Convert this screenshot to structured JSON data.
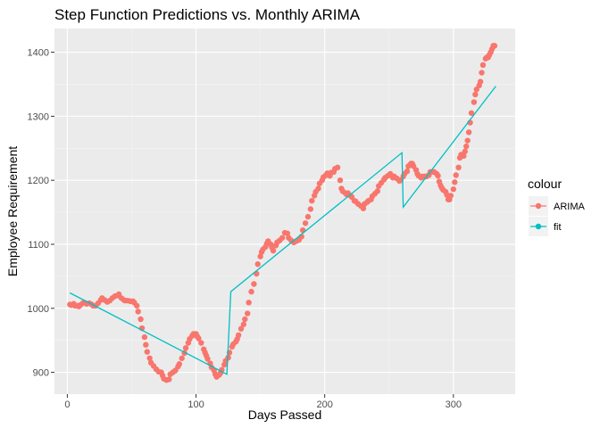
{
  "chart_data": {
    "type": "scatter",
    "title": "Step Function Predictions vs. Monthly ARIMA",
    "xlabel": "Days Passed",
    "ylabel": "Employee Requirement",
    "xlim": [
      -10,
      348
    ],
    "ylim": [
      866,
      1437
    ],
    "x_ticks": [
      0,
      100,
      200,
      300
    ],
    "y_ticks": [
      900,
      1000,
      1100,
      1200,
      1300,
      1400
    ],
    "grid": true,
    "legend": {
      "title": "colour",
      "placement": "right",
      "entries": [
        {
          "label": "ARIMA",
          "color": "#F8766D",
          "kind": "points"
        },
        {
          "label": "fit",
          "color": "#00BFC4",
          "kind": "line"
        }
      ]
    },
    "series": [
      {
        "name": "ARIMA",
        "color": "#F8766D",
        "kind": "points",
        "points": [
          [
            2,
            1006
          ],
          [
            3,
            1005
          ],
          [
            5,
            1007
          ],
          [
            6,
            1004
          ],
          [
            8,
            1004
          ],
          [
            9,
            1003
          ],
          [
            10,
            1005
          ],
          [
            12,
            1008
          ],
          [
            13,
            1009
          ],
          [
            15,
            1007
          ],
          [
            17,
            1008
          ],
          [
            19,
            1006
          ],
          [
            20,
            1004
          ],
          [
            22,
            1004
          ],
          [
            24,
            1008
          ],
          [
            26,
            1013
          ],
          [
            27,
            1016
          ],
          [
            29,
            1013
          ],
          [
            31,
            1010
          ],
          [
            33,
            1012
          ],
          [
            35,
            1016
          ],
          [
            37,
            1019
          ],
          [
            39,
            1020
          ],
          [
            40,
            1022
          ],
          [
            42,
            1016
          ],
          [
            44,
            1013
          ],
          [
            45,
            1012
          ],
          [
            47,
            1012
          ],
          [
            49,
            1011
          ],
          [
            51,
            1011
          ],
          [
            52,
            1009
          ],
          [
            54,
            1004
          ],
          [
            55,
            995
          ],
          [
            57,
            983
          ],
          [
            58,
            969
          ],
          [
            60,
            955
          ],
          [
            61,
            943
          ],
          [
            62,
            932
          ],
          [
            64,
            922
          ],
          [
            65,
            915
          ],
          [
            67,
            910
          ],
          [
            69,
            905
          ],
          [
            71,
            901
          ],
          [
            73,
            900
          ],
          [
            74,
            895
          ],
          [
            75,
            890
          ],
          [
            77,
            888
          ],
          [
            79,
            889
          ],
          [
            80,
            897
          ],
          [
            82,
            900
          ],
          [
            84,
            903
          ],
          [
            86,
            909
          ],
          [
            87,
            913
          ],
          [
            89,
            922
          ],
          [
            91,
            930
          ],
          [
            92,
            938
          ],
          [
            94,
            946
          ],
          [
            95,
            952
          ],
          [
            97,
            957
          ],
          [
            98,
            960
          ],
          [
            100,
            960
          ],
          [
            101,
            956
          ],
          [
            102,
            953
          ],
          [
            104,
            946
          ],
          [
            106,
            936
          ],
          [
            107,
            931
          ],
          [
            108,
            926
          ],
          [
            109,
            921
          ],
          [
            111,
            914
          ],
          [
            112,
            908
          ],
          [
            114,
            903
          ],
          [
            115,
            897
          ],
          [
            116,
            893
          ],
          [
            118,
            896
          ],
          [
            119,
            899
          ],
          [
            120,
            904
          ],
          [
            122,
            912
          ],
          [
            123,
            918
          ],
          [
            125,
            923
          ],
          [
            126,
            931
          ],
          [
            128,
            940
          ],
          [
            129,
            944
          ],
          [
            131,
            948
          ],
          [
            132,
            952
          ],
          [
            133,
            958
          ],
          [
            135,
            968
          ],
          [
            137,
            975
          ],
          [
            138,
            983
          ],
          [
            140,
            992
          ],
          [
            141,
            1009
          ],
          [
            143,
            1026
          ],
          [
            145,
            1038
          ],
          [
            147,
            1054
          ],
          [
            148,
            1069
          ],
          [
            150,
            1081
          ],
          [
            151,
            1088
          ],
          [
            152,
            1092
          ],
          [
            154,
            1096
          ],
          [
            155,
            1101
          ],
          [
            156,
            1105
          ],
          [
            158,
            1100
          ],
          [
            159,
            1095
          ],
          [
            160,
            1090
          ],
          [
            162,
            1098
          ],
          [
            163,
            1103
          ],
          [
            165,
            1106
          ],
          [
            167,
            1110
          ],
          [
            169,
            1118
          ],
          [
            171,
            1117
          ],
          [
            172,
            1110
          ],
          [
            174,
            1106
          ],
          [
            176,
            1103
          ],
          [
            178,
            1105
          ],
          [
            180,
            1107
          ],
          [
            182,
            1112
          ],
          [
            183,
            1122
          ],
          [
            185,
            1133
          ],
          [
            187,
            1143
          ],
          [
            189,
            1155
          ],
          [
            190,
            1168
          ],
          [
            192,
            1176
          ],
          [
            193,
            1182
          ],
          [
            195,
            1187
          ],
          [
            196,
            1195
          ],
          [
            198,
            1200
          ],
          [
            199,
            1205
          ],
          [
            201,
            1208
          ],
          [
            202,
            1211
          ],
          [
            204,
            1207
          ],
          [
            205,
            1212
          ],
          [
            207,
            1213
          ],
          [
            208,
            1218
          ],
          [
            210,
            1220
          ],
          [
            212,
            1200
          ],
          [
            213,
            1187
          ],
          [
            214,
            1183
          ],
          [
            216,
            1180
          ],
          [
            217,
            1178
          ],
          [
            218,
            1180
          ],
          [
            220,
            1176
          ],
          [
            221,
            1174
          ],
          [
            223,
            1168
          ],
          [
            224,
            1167
          ],
          [
            226,
            1163
          ],
          [
            228,
            1160
          ],
          [
            230,
            1156
          ],
          [
            231,
            1163
          ],
          [
            233,
            1166
          ],
          [
            234,
            1168
          ],
          [
            236,
            1170
          ],
          [
            237,
            1175
          ],
          [
            239,
            1179
          ],
          [
            241,
            1183
          ],
          [
            242,
            1191
          ],
          [
            244,
            1196
          ],
          [
            246,
            1201
          ],
          [
            247,
            1204
          ],
          [
            249,
            1207
          ],
          [
            251,
            1210
          ],
          [
            253,
            1204
          ],
          [
            254,
            1206
          ],
          [
            256,
            1203
          ],
          [
            258,
            1199
          ],
          [
            259,
            1200
          ],
          [
            261,
            1206
          ],
          [
            262,
            1210
          ],
          [
            264,
            1214
          ],
          [
            265,
            1222
          ],
          [
            267,
            1226
          ],
          [
            268,
            1226
          ],
          [
            269,
            1222
          ],
          [
            271,
            1216
          ],
          [
            272,
            1210
          ],
          [
            273,
            1207
          ],
          [
            275,
            1204
          ],
          [
            276,
            1206
          ],
          [
            278,
            1206
          ],
          [
            279,
            1206
          ],
          [
            281,
            1208
          ],
          [
            282,
            1213
          ],
          [
            284,
            1213
          ],
          [
            285,
            1213
          ],
          [
            287,
            1210
          ],
          [
            288,
            1207
          ],
          [
            289,
            1198
          ],
          [
            290,
            1192
          ],
          [
            291,
            1188
          ],
          [
            292,
            1185
          ],
          [
            294,
            1182
          ],
          [
            295,
            1177
          ],
          [
            296,
            1170
          ],
          [
            297,
            1170
          ],
          [
            298,
            1176
          ],
          [
            300,
            1186
          ],
          [
            301,
            1197
          ],
          [
            302,
            1208
          ],
          [
            304,
            1220
          ],
          [
            305,
            1235
          ],
          [
            306,
            1240
          ],
          [
            308,
            1238
          ],
          [
            309,
            1245
          ],
          [
            310,
            1253
          ],
          [
            311,
            1262
          ],
          [
            312,
            1275
          ],
          [
            313,
            1290
          ],
          [
            314,
            1305
          ],
          [
            316,
            1322
          ],
          [
            317,
            1334
          ],
          [
            318,
            1342
          ],
          [
            320,
            1348
          ],
          [
            321,
            1354
          ],
          [
            322,
            1368
          ],
          [
            323,
            1380
          ],
          [
            325,
            1390
          ],
          [
            326,
            1392
          ],
          [
            327,
            1392
          ],
          [
            328,
            1396
          ],
          [
            329,
            1400
          ],
          [
            330,
            1405
          ],
          [
            331,
            1410
          ],
          [
            332,
            1410
          ]
        ]
      },
      {
        "name": "fit",
        "color": "#00BFC4",
        "kind": "line",
        "points": [
          [
            2,
            1024
          ],
          [
            124,
            897
          ],
          [
            127,
            1026
          ],
          [
            260,
            1243
          ],
          [
            261,
            1158
          ],
          [
            333,
            1347
          ]
        ]
      }
    ]
  }
}
